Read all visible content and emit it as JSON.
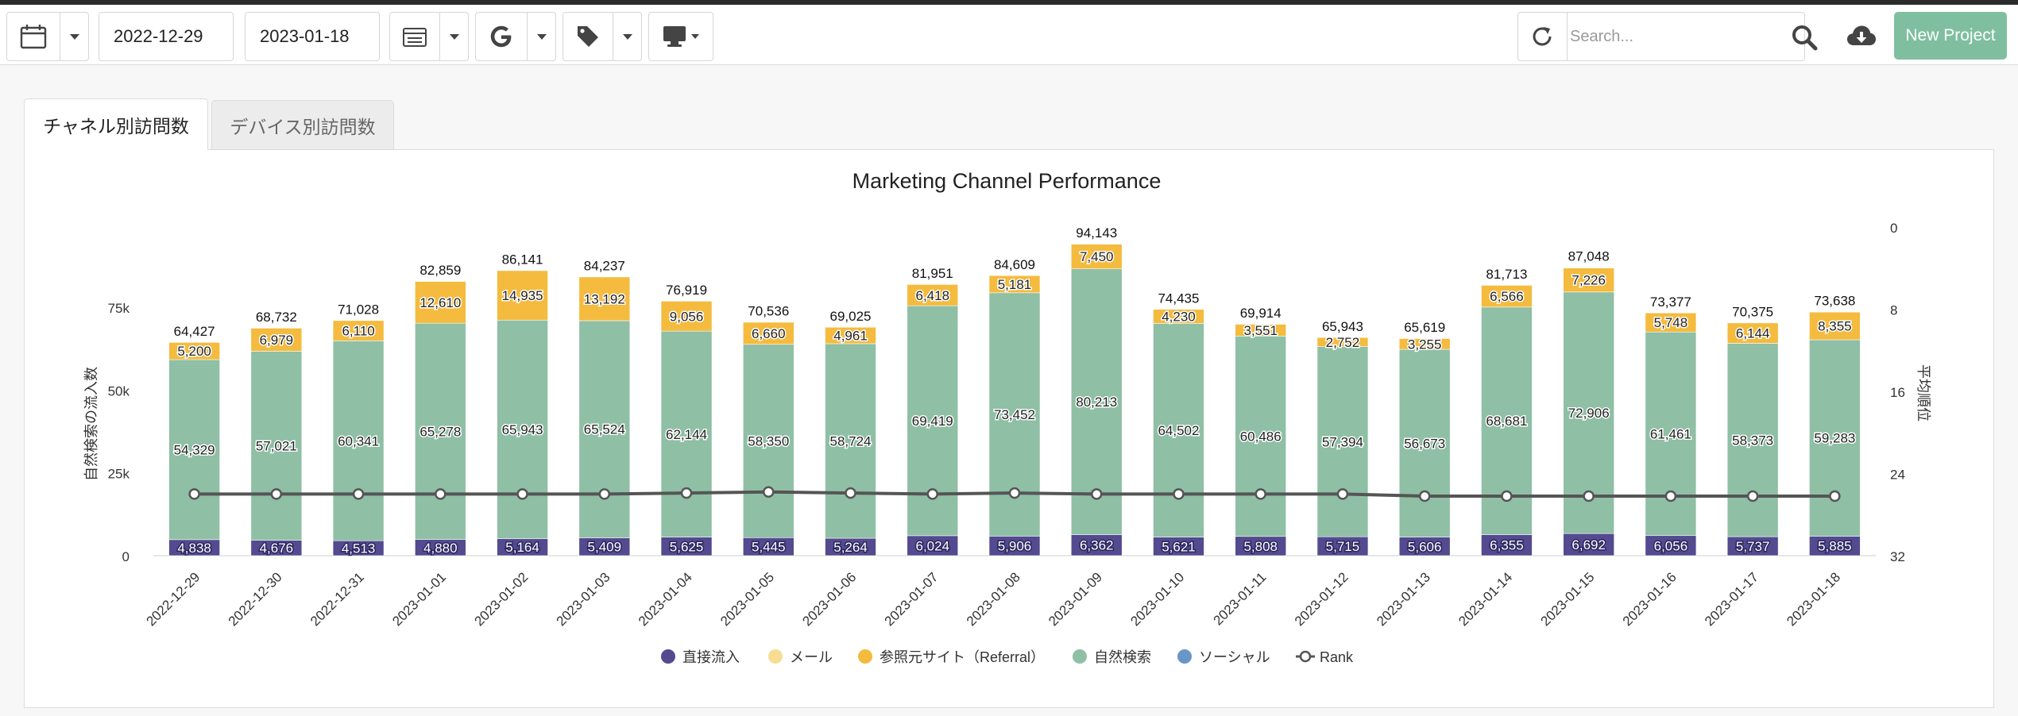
{
  "toolbar": {
    "date_from": "2022-12-29",
    "date_to": "2023-01-18",
    "search_placeholder": "Search...",
    "new_project_label": "New Project",
    "icons": [
      "calendar-icon",
      "calendar-compare-icon",
      "google-icon",
      "tag-icon",
      "monitor-icon",
      "refresh-icon",
      "search-icon",
      "cloud-download-icon"
    ]
  },
  "tabs": [
    {
      "label": "チャネル別訪問数",
      "active": true
    },
    {
      "label": "デバイス別訪問数",
      "active": false
    }
  ],
  "colors": {
    "direct": "#534a8f",
    "mail": "#f7dc93",
    "referral": "#f4bb3f",
    "organic": "#8fbfa5",
    "social": "#6a96c7",
    "rank": "#555555",
    "accent": "#7fbf9f"
  },
  "chart_data": {
    "type": "bar",
    "title": "Marketing Channel Performance",
    "ylabel": "自然検索の流入数",
    "y2label": "平均順位",
    "ylim": [
      0,
      75000
    ],
    "yticks": [
      "0",
      "25k",
      "50k",
      "75k"
    ],
    "y2lim": [
      0,
      32
    ],
    "y2reversed": true,
    "y2ticks": [
      "0",
      "8",
      "16",
      "24",
      "32"
    ],
    "stacked": true,
    "categories": [
      "2022-12-29",
      "2022-12-30",
      "2022-12-31",
      "2023-01-01",
      "2023-01-02",
      "2023-01-03",
      "2023-01-04",
      "2023-01-05",
      "2023-01-06",
      "2023-01-07",
      "2023-01-08",
      "2023-01-09",
      "2023-01-10",
      "2023-01-11",
      "2023-01-12",
      "2023-01-13",
      "2023-01-14",
      "2023-01-15",
      "2023-01-16",
      "2023-01-17",
      "2023-01-18"
    ],
    "series": [
      {
        "name": "直接流入",
        "key": "direct",
        "values": [
          4838,
          4676,
          4513,
          4880,
          5164,
          5409,
          5625,
          5445,
          5264,
          6024,
          5906,
          6362,
          5621,
          5808,
          5715,
          5606,
          6355,
          6692,
          6056,
          5737,
          5885
        ]
      },
      {
        "name": "メール",
        "key": "mail",
        "values": [
          0,
          0,
          0,
          0,
          0,
          0,
          0,
          0,
          0,
          0,
          0,
          0,
          0,
          0,
          0,
          0,
          0,
          0,
          0,
          0,
          0
        ]
      },
      {
        "name": "参照元サイト（Referral）",
        "key": "referral",
        "values": [
          5200,
          6979,
          6110,
          12610,
          14935,
          13192,
          9056,
          6660,
          4961,
          6418,
          5181,
          7450,
          4230,
          3551,
          2752,
          3255,
          6566,
          7226,
          5748,
          6144,
          8355
        ]
      },
      {
        "name": "自然検索",
        "key": "organic",
        "values": [
          54329,
          57021,
          60341,
          65278,
          65943,
          65524,
          62144,
          58350,
          58724,
          69419,
          73452,
          80213,
          64502,
          60486,
          57394,
          56673,
          68681,
          72906,
          61461,
          58373,
          59283
        ]
      },
      {
        "name": "ソーシャル",
        "key": "social",
        "values": [
          0,
          0,
          0,
          0,
          0,
          0,
          0,
          0,
          0,
          0,
          0,
          0,
          0,
          0,
          0,
          0,
          0,
          0,
          0,
          0,
          0
        ]
      }
    ],
    "totals": [
      64427,
      68732,
      71028,
      82859,
      86141,
      84237,
      76919,
      70536,
      69025,
      81951,
      84609,
      94143,
      74435,
      69914,
      65943,
      65619,
      81713,
      87048,
      73377,
      70375,
      73638
    ],
    "rank": {
      "name": "Rank",
      "values": [
        26.0,
        26.0,
        26.0,
        26.0,
        26.0,
        26.0,
        25.9,
        25.8,
        25.9,
        26.0,
        25.9,
        26.0,
        26.0,
        26.0,
        26.0,
        26.2,
        26.2,
        26.2,
        26.2,
        26.2,
        26.2
      ]
    },
    "legend": [
      "直接流入",
      "メール",
      "参照元サイト（Referral）",
      "自然検索",
      "ソーシャル",
      "Rank"
    ],
    "legend_position": "bottom",
    "grid": false
  }
}
